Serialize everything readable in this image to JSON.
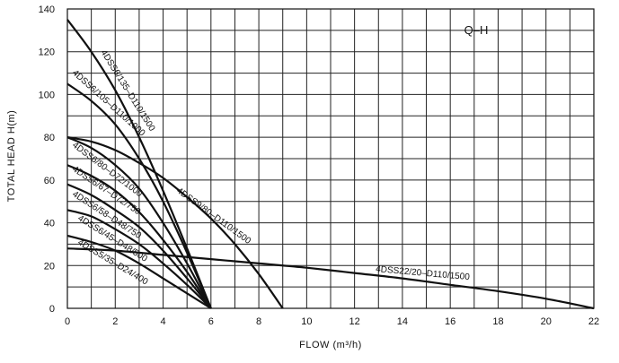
{
  "chart_data": {
    "type": "line",
    "title": "Q–H",
    "xlabel": "FLOW (m³/h)",
    "ylabel": "TOTAL HEAD H(m)",
    "xlim": [
      0,
      22
    ],
    "ylim": [
      0,
      140
    ],
    "xticks": [
      "0",
      "2",
      "4",
      "6",
      "8",
      "10",
      "12",
      "14",
      "16",
      "18",
      "20",
      "22"
    ],
    "yticks": [
      "0",
      "20",
      "40",
      "60",
      "80",
      "100",
      "120",
      "140"
    ],
    "grid": true,
    "series": [
      {
        "name": "4DSS6/135–D110/1500",
        "x": [
          0,
          1,
          2,
          3,
          4,
          5,
          6
        ],
        "y": [
          135,
          120,
          102,
          80,
          55,
          28,
          0
        ]
      },
      {
        "name": "4DSS6/105–D110/1000",
        "x": [
          0,
          1,
          2,
          3,
          4,
          5,
          6
        ],
        "y": [
          105,
          97,
          86,
          70,
          50,
          26,
          0
        ]
      },
      {
        "name": "4DSS6/80–D72/1000",
        "x": [
          0,
          1,
          2,
          3,
          4,
          5,
          6
        ],
        "y": [
          80,
          75,
          67,
          56,
          40,
          21,
          0
        ]
      },
      {
        "name": "4DSS9/80–D110/1500",
        "x": [
          0,
          1,
          2,
          3,
          4,
          5,
          6,
          7,
          8,
          9
        ],
        "y": [
          80,
          78,
          74,
          68,
          61,
          52,
          42,
          30,
          16,
          0
        ]
      },
      {
        "name": "4DSS6/67–D72/750",
        "x": [
          0,
          1,
          2,
          3,
          4,
          5,
          6
        ],
        "y": [
          67,
          62,
          55,
          45,
          32,
          17,
          0
        ]
      },
      {
        "name": "4DSS6/58–D48/750",
        "x": [
          0,
          1,
          2,
          3,
          4,
          5,
          6
        ],
        "y": [
          58,
          53,
          46,
          38,
          27,
          14,
          0
        ]
      },
      {
        "name": "4DSS6/45–D48/500",
        "x": [
          0,
          1,
          2,
          3,
          4,
          5,
          6
        ],
        "y": [
          46,
          43,
          37,
          30,
          21,
          11,
          0
        ]
      },
      {
        "name": "4DSS5/35–D24/400",
        "x": [
          0,
          1,
          2,
          3,
          4,
          5,
          6
        ],
        "y": [
          34,
          31,
          27,
          21,
          14,
          7,
          0
        ]
      },
      {
        "name": "4DSS22/20–D110/1500",
        "x": [
          0,
          2,
          4,
          6,
          8,
          10,
          12,
          14,
          16,
          18,
          20,
          22
        ],
        "y": [
          28,
          27,
          25,
          23,
          21,
          19,
          16.5,
          14,
          11,
          8,
          4.5,
          0
        ]
      }
    ]
  }
}
